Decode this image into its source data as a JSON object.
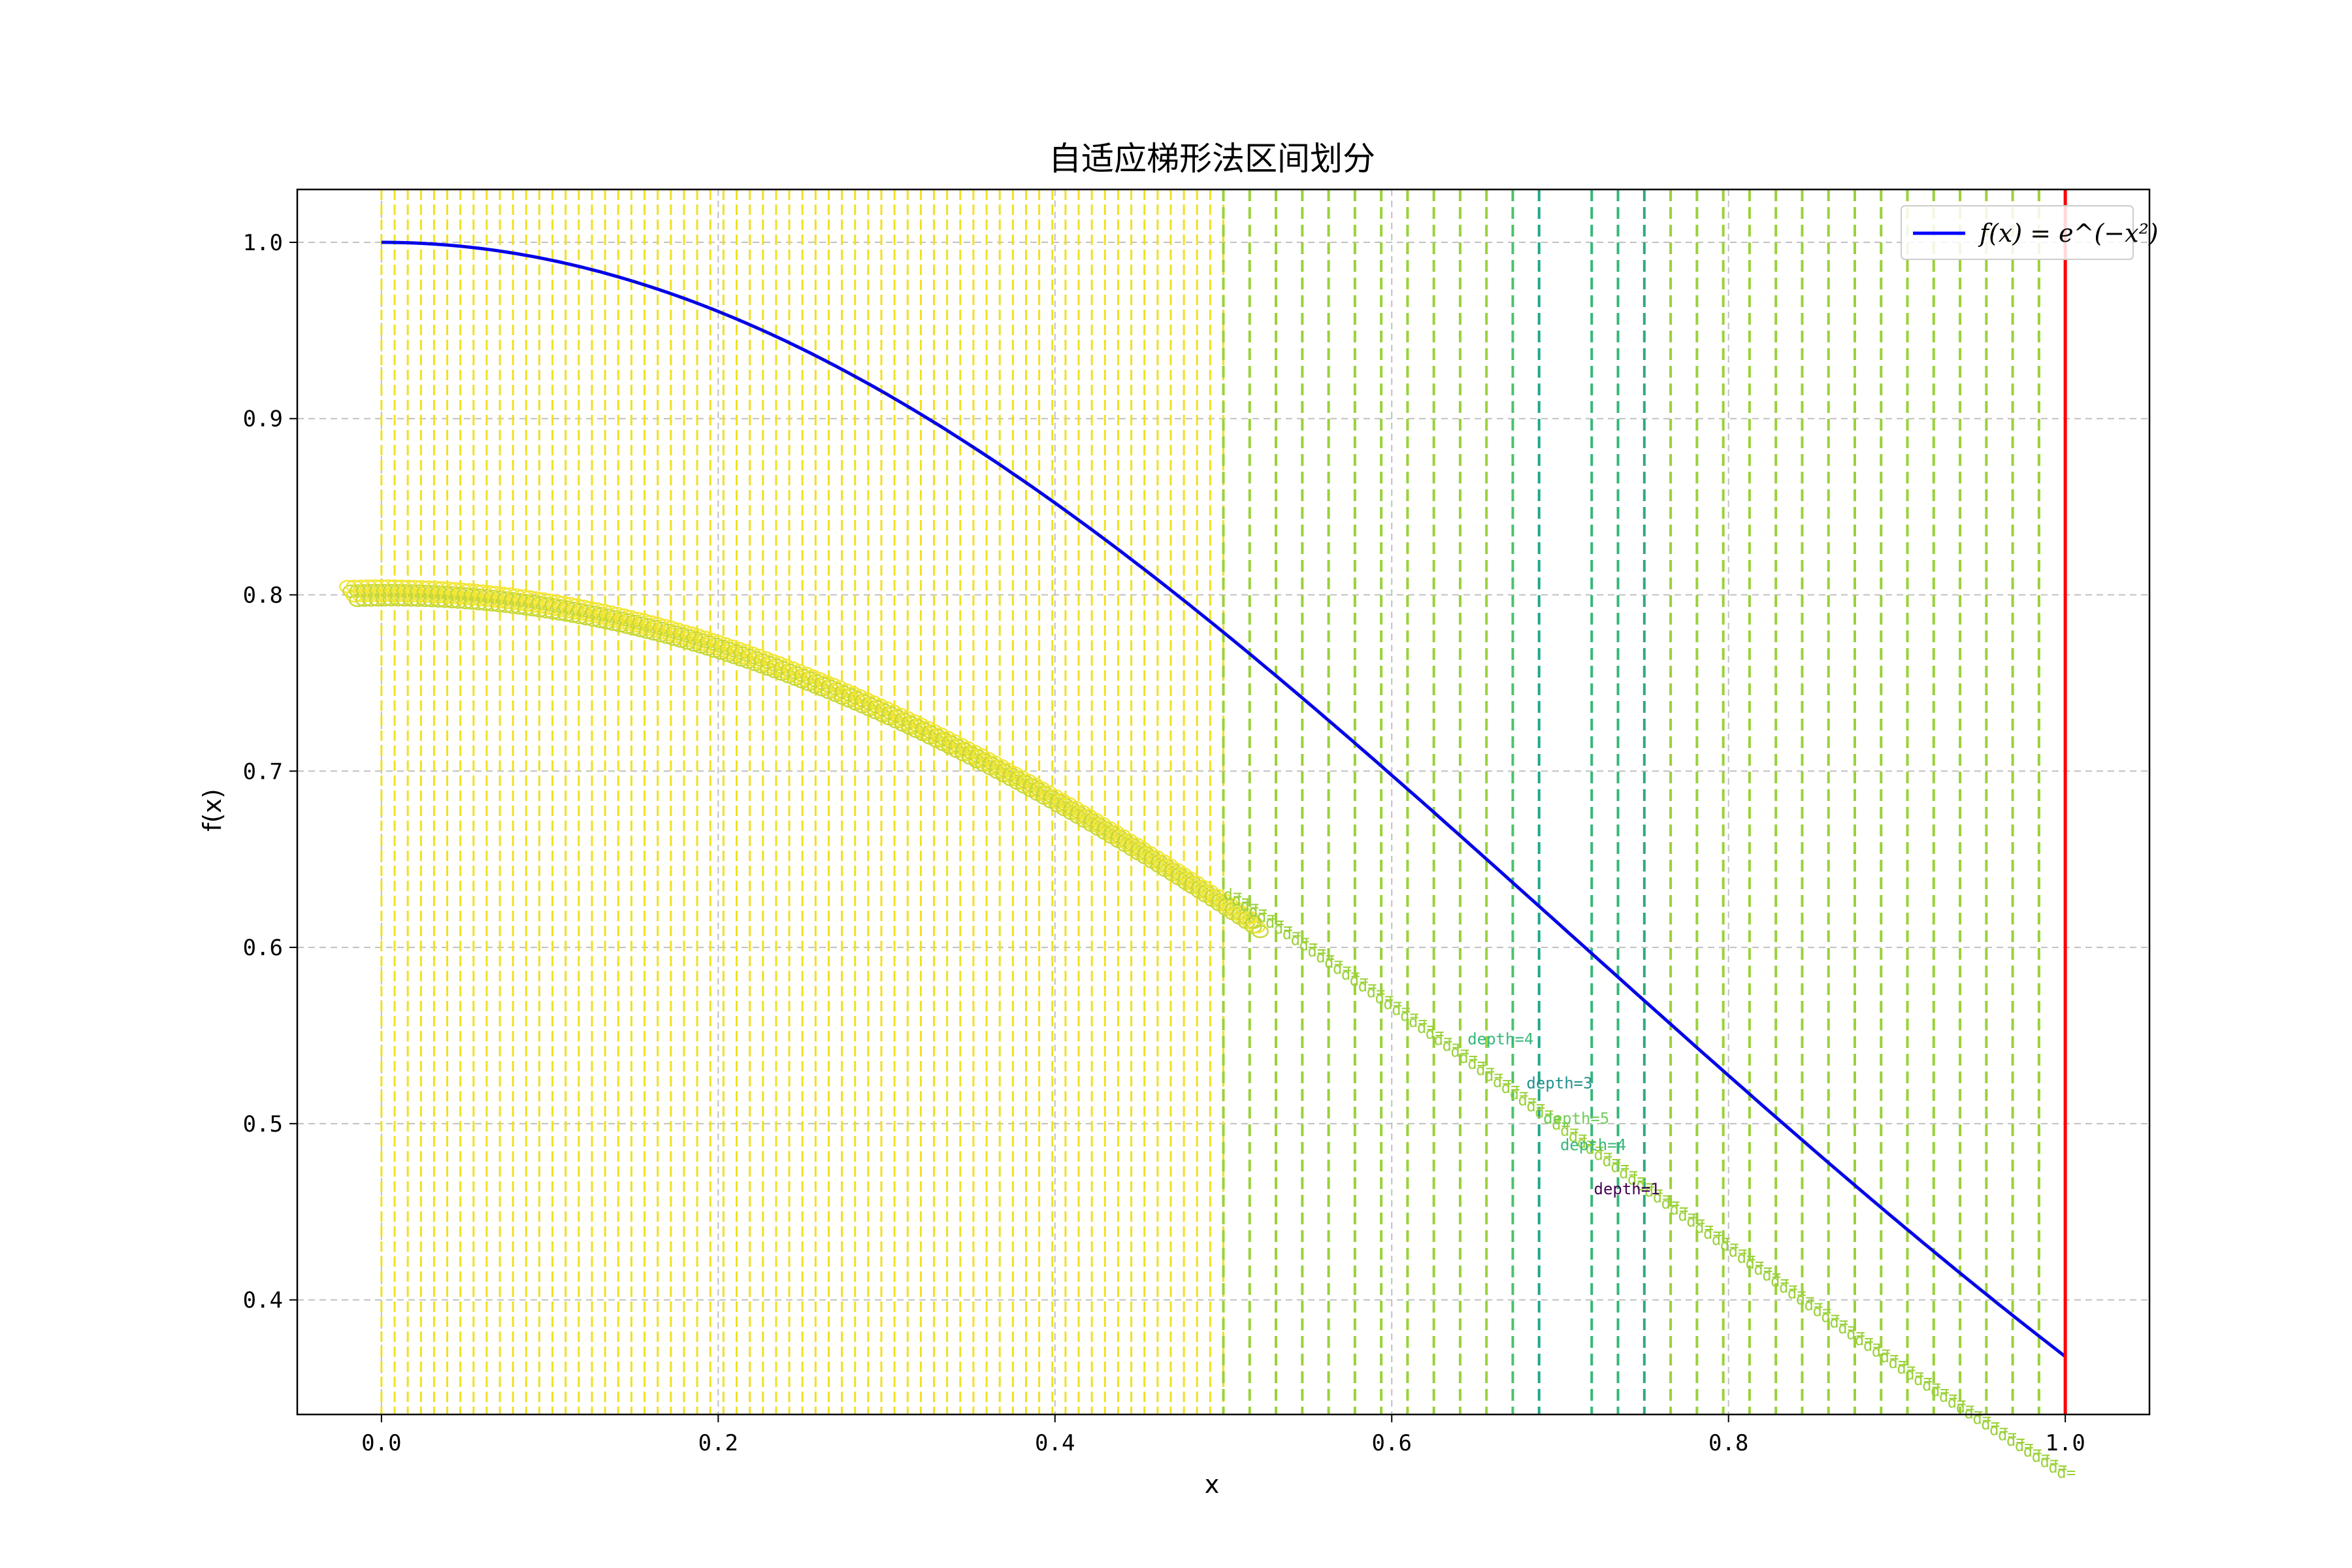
{
  "chart_data": {
    "type": "line",
    "title": "自适应梯形法区间划分",
    "xlabel": "x",
    "ylabel": "f(x)",
    "xlim": [
      -0.05,
      1.05
    ],
    "ylim": [
      0.335,
      1.03
    ],
    "xticks": [
      0.0,
      0.2,
      0.4,
      0.6,
      0.8,
      1.0
    ],
    "xtick_labels": [
      "0.0",
      "0.2",
      "0.4",
      "0.6",
      "0.8",
      "1.0"
    ],
    "yticks": [
      0.4,
      0.5,
      0.6,
      0.7,
      0.8,
      0.9,
      1.0
    ],
    "ytick_labels": [
      "0.4",
      "0.5",
      "0.6",
      "0.7",
      "0.8",
      "0.9",
      "1.0"
    ],
    "grid": true,
    "legend_position": "top-right",
    "series": [
      {
        "name": "f(x) = e^(-x²)",
        "function": "exp(-x^2)",
        "x_range": [
          0,
          1
        ],
        "color": "#0000ff"
      }
    ],
    "boundary_line": {
      "x": 1.0,
      "color": "#ff0000"
    },
    "subdivision_points": {
      "dense_region": [
        0.0,
        0.5
      ],
      "dense_step": 0.0078125,
      "sparse_points": [
        0.5,
        0.515625,
        0.53125,
        0.546875,
        0.5625,
        0.578125,
        0.59375,
        0.609375,
        0.625,
        0.640625,
        0.65625,
        0.671875,
        0.6875,
        0.71875,
        0.734375,
        0.75,
        0.765625,
        0.78125,
        0.796875,
        0.8125,
        0.828125,
        0.84375,
        0.859375,
        0.875,
        0.890625,
        0.90625,
        0.921875,
        0.9375,
        0.953125,
        0.96875,
        0.984375,
        1.0
      ]
    },
    "depth_annotations": {
      "prefix": "depth=",
      "colors": {
        "1": "#440154",
        "2": "#31688e",
        "3": "#21918c",
        "4": "#35b779",
        "5": "#6ece58",
        "6": "#b5de2b",
        "7": "#fde725"
      },
      "labels": [
        {
          "x": 0.72,
          "y": 0.46,
          "depth": 1,
          "text": "depth=1"
        },
        {
          "x": 0.68,
          "y": 0.52,
          "depth": 3,
          "text": "depth=3"
        },
        {
          "x": 0.645,
          "y": 0.545,
          "depth": 4,
          "text": "depth=4"
        },
        {
          "x": 0.69,
          "y": 0.5,
          "depth": 5,
          "text": "depth=5"
        },
        {
          "x": 0.7,
          "y": 0.485,
          "depth": 4,
          "text": "depth=4"
        }
      ]
    }
  },
  "legend": {
    "label": "f(x) = e^(−x²)"
  },
  "colors": {
    "curve": "#0000ff",
    "boundary": "#ff0000",
    "grid": "#c0c0c0"
  }
}
